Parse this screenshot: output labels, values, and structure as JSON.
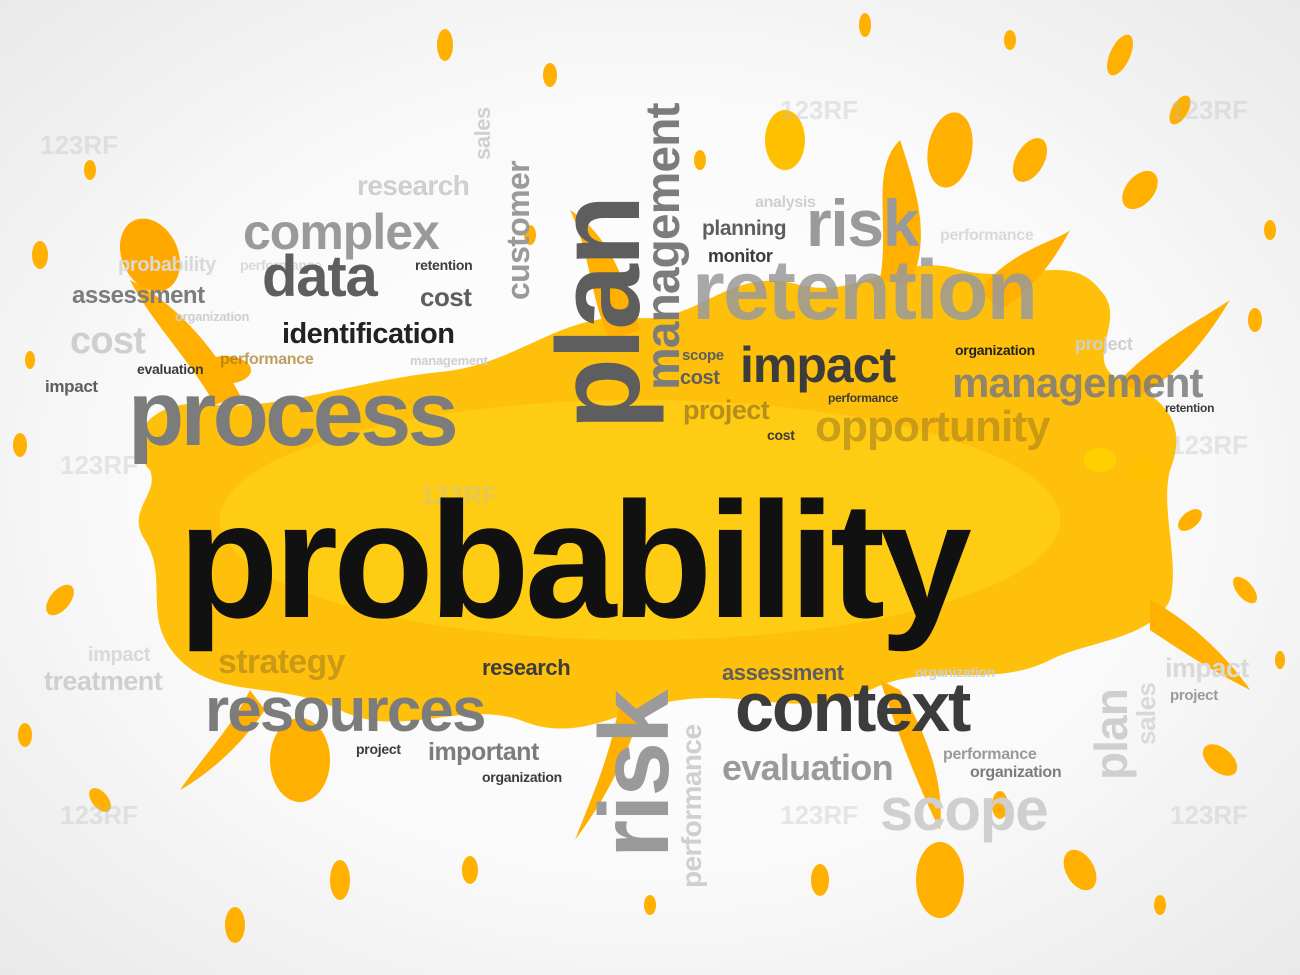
{
  "colors": {
    "splash": "#ffb000",
    "splash_light": "#ffd21a",
    "main_word": "#111111"
  },
  "main_word": "probability",
  "words": {
    "research_top": "research",
    "complex": "complex",
    "performance_tl": "performance",
    "probability_small": "probability",
    "assessment_l": "assessment",
    "organization_l": "organization",
    "cost_l": "cost",
    "data": "data",
    "retention_l": "retention",
    "cost_mid": "cost",
    "identification": "identification",
    "management_small": "management",
    "performance_l": "performance",
    "evaluation_l": "evaluation",
    "impact_l": "impact",
    "process": "process",
    "sales_v": "sales",
    "customer_v": "customer",
    "plan_v": "plan",
    "management_v": "management",
    "analysis": "analysis",
    "planning": "planning",
    "monitor": "monitor",
    "risk_top": "risk",
    "performance_tr": "performance",
    "retention_big": "retention",
    "scope_s": "scope",
    "cost_s": "cost",
    "impact_mid": "impact",
    "organization_r": "organization",
    "project_tr": "project",
    "management_r": "management",
    "project_m": "project",
    "performance_m": "performance",
    "retention_r": "retention",
    "cost_m": "cost",
    "opportunity": "opportunity",
    "impact_bl": "impact",
    "strategy": "strategy",
    "treatment": "treatment",
    "research_b": "research",
    "resources": "resources",
    "project_b": "project",
    "important": "important",
    "organization_b": "organization",
    "risk_v": "risk",
    "performance_v": "performance",
    "assessment_b": "assessment",
    "organization_br": "organization",
    "context": "context",
    "evaluation_b": "evaluation",
    "performance_b": "performance",
    "organization_b2": "organization",
    "scope_big": "scope",
    "plan_v2": "plan",
    "sales_v2": "sales",
    "impact_r": "impact",
    "project_r": "project"
  },
  "watermark": "123RF"
}
